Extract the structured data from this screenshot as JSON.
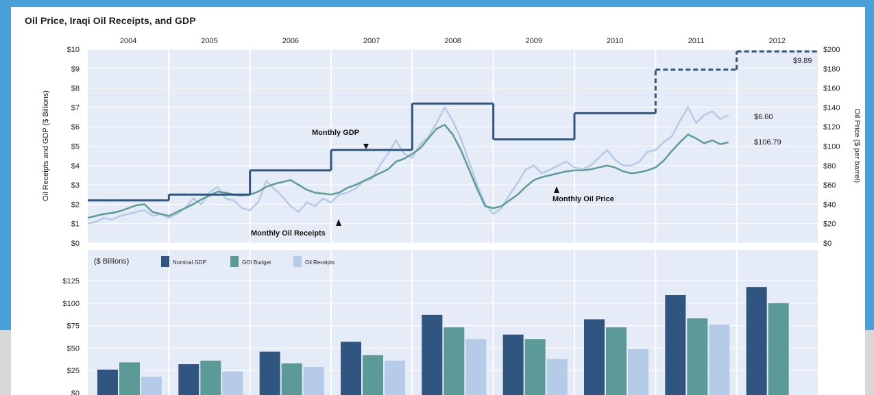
{
  "window_colors": {
    "frame": "#4aa0d8",
    "strip": "#d7d7d7",
    "panel": "#e6ecf7",
    "gdp": "#2f5580",
    "budget": "#5c9a98",
    "receipts": "#b6cbe7",
    "oil_price": "#5f9e98"
  },
  "chart_data": [
    {
      "type": "line",
      "title": "Oil Price, Iraqi Oil Receipts, and GDP",
      "years": [
        "2004",
        "2005",
        "2006",
        "2007",
        "2008",
        "2009",
        "2010",
        "2011",
        "2012"
      ],
      "ylabel_left": "Oil Receipts and GDP ($ Billions)",
      "ylabel_right": "Oil Price ($ per barrel)",
      "y_left_ticks": [
        "$0",
        "$1",
        "$2",
        "$3",
        "$4",
        "$5",
        "$6",
        "$7",
        "$8",
        "$9",
        "$10"
      ],
      "y_right_ticks": [
        "$0",
        "$20",
        "$40",
        "$60",
        "$80",
        "$100",
        "$120",
        "$140",
        "$160",
        "$180",
        "$200"
      ],
      "ylim_left": [
        0,
        10
      ],
      "ylim_right": [
        0,
        200
      ],
      "gdp_steps": [
        {
          "from": 2004.0,
          "to": 2005.0,
          "value": 2.2
        },
        {
          "from": 2005.0,
          "to": 2006.0,
          "value": 2.5
        },
        {
          "from": 2006.0,
          "to": 2007.0,
          "value": 3.75
        },
        {
          "from": 2007.0,
          "to": 2008.0,
          "value": 4.8
        },
        {
          "from": 2008.0,
          "to": 2009.0,
          "value": 7.2
        },
        {
          "from": 2009.0,
          "to": 2010.0,
          "value": 5.35
        },
        {
          "from": 2010.0,
          "to": 2011.0,
          "value": 6.7
        },
        {
          "from": 2011.0,
          "to": 2012.0,
          "value": 8.95,
          "projected": true
        },
        {
          "from": 2012.0,
          "to": 2013.0,
          "value": 9.89,
          "projected": true
        }
      ],
      "series": [
        {
          "name": "Monthly Oil Receipts",
          "axis": "left",
          "x": [
            2004.0,
            2004.1,
            2004.2,
            2004.3,
            2004.4,
            2004.5,
            2004.6,
            2004.7,
            2004.8,
            2004.9,
            2005.0,
            2005.1,
            2005.2,
            2005.3,
            2005.4,
            2005.5,
            2005.6,
            2005.7,
            2005.8,
            2005.9,
            2006.0,
            2006.1,
            2006.2,
            2006.3,
            2006.4,
            2006.5,
            2006.6,
            2006.7,
            2006.8,
            2006.9,
            2007.0,
            2007.1,
            2007.2,
            2007.3,
            2007.4,
            2007.5,
            2007.6,
            2007.7,
            2007.8,
            2007.9,
            2008.0,
            2008.1,
            2008.2,
            2008.3,
            2008.4,
            2008.5,
            2008.6,
            2008.7,
            2008.8,
            2008.9,
            2009.0,
            2009.1,
            2009.2,
            2009.3,
            2009.4,
            2009.5,
            2009.6,
            2009.7,
            2009.8,
            2009.9,
            2010.0,
            2010.1,
            2010.2,
            2010.3,
            2010.4,
            2010.5,
            2010.6,
            2010.7,
            2010.8,
            2010.9,
            2011.0,
            2011.1,
            2011.2,
            2011.3,
            2011.4,
            2011.5,
            2011.6,
            2011.7,
            2011.8,
            2011.9
          ],
          "values": [
            1.0,
            1.1,
            1.3,
            1.2,
            1.4,
            1.5,
            1.6,
            1.7,
            1.4,
            1.5,
            1.3,
            1.5,
            1.8,
            2.3,
            2.0,
            2.6,
            2.9,
            2.3,
            2.2,
            1.8,
            1.7,
            2.1,
            3.2,
            2.8,
            2.4,
            1.9,
            1.6,
            2.1,
            1.9,
            2.3,
            2.1,
            2.5,
            2.6,
            2.8,
            3.2,
            3.3,
            4.0,
            4.6,
            5.3,
            4.6,
            4.4,
            5.1,
            5.5,
            6.2,
            7.0,
            6.3,
            5.4,
            4.2,
            3.0,
            2.0,
            1.5,
            1.8,
            2.5,
            3.1,
            3.8,
            4.0,
            3.6,
            3.8,
            4.0,
            4.2,
            3.9,
            3.8,
            4.0,
            4.4,
            4.8,
            4.3,
            4.0,
            4.0,
            4.2,
            4.7,
            4.8,
            5.2,
            5.5,
            6.3,
            7.0,
            6.2,
            6.6,
            6.8,
            6.4,
            6.6
          ]
        },
        {
          "name": "Monthly Oil Price",
          "axis": "right",
          "x": [
            2004.0,
            2004.1,
            2004.2,
            2004.3,
            2004.4,
            2004.5,
            2004.6,
            2004.7,
            2004.8,
            2004.9,
            2005.0,
            2005.1,
            2005.2,
            2005.3,
            2005.4,
            2005.5,
            2005.6,
            2005.7,
            2005.8,
            2005.9,
            2006.0,
            2006.1,
            2006.2,
            2006.3,
            2006.4,
            2006.5,
            2006.6,
            2006.7,
            2006.8,
            2006.9,
            2007.0,
            2007.1,
            2007.2,
            2007.3,
            2007.4,
            2007.5,
            2007.6,
            2007.7,
            2007.8,
            2007.9,
            2008.0,
            2008.1,
            2008.2,
            2008.3,
            2008.4,
            2008.5,
            2008.6,
            2008.7,
            2008.8,
            2008.9,
            2009.0,
            2009.1,
            2009.2,
            2009.3,
            2009.4,
            2009.5,
            2009.6,
            2009.7,
            2009.8,
            2009.9,
            2010.0,
            2010.1,
            2010.2,
            2010.3,
            2010.4,
            2010.5,
            2010.6,
            2010.7,
            2010.8,
            2010.9,
            2011.0,
            2011.1,
            2011.2,
            2011.3,
            2011.4,
            2011.5,
            2011.6,
            2011.7,
            2011.8,
            2011.9
          ],
          "values": [
            26,
            28,
            30,
            31,
            33,
            36,
            39,
            40,
            32,
            30,
            28,
            32,
            36,
            40,
            45,
            49,
            53,
            52,
            50,
            49,
            50,
            53,
            58,
            61,
            63,
            65,
            60,
            55,
            52,
            51,
            50,
            52,
            57,
            60,
            64,
            68,
            72,
            76,
            84,
            87,
            92,
            98,
            108,
            118,
            122,
            112,
            96,
            76,
            56,
            38,
            36,
            38,
            44,
            50,
            58,
            65,
            68,
            70,
            72,
            74,
            75,
            75,
            76,
            78,
            80,
            78,
            74,
            72,
            73,
            75,
            78,
            85,
            95,
            104,
            112,
            108,
            103,
            106,
            102,
            104
          ]
        }
      ],
      "labels": {
        "monthly_gdp": "Monthly GDP",
        "monthly_oil_receipts": "Monthly Oil Receipts",
        "monthly_oil_price": "Monthly Oil Price",
        "end_receipts": "$6.60",
        "end_price": "$106.79",
        "end_gdp": "$9.89"
      }
    },
    {
      "type": "bar",
      "unit_label": "($ Billions)",
      "categories": [
        "2004",
        "2005",
        "2006",
        "2007",
        "2008",
        "2009",
        "2010",
        "2011",
        "2012"
      ],
      "y_ticks": [
        "$0",
        "$25",
        "$50",
        "$75",
        "$100",
        "$125"
      ],
      "ylim": [
        0,
        125
      ],
      "series": [
        {
          "name": "Nominal GDP",
          "values": [
            26,
            32,
            46,
            57,
            87,
            65,
            82,
            109,
            118
          ]
        },
        {
          "name": "GOI Budget",
          "values": [
            34,
            36,
            33,
            42,
            73,
            60,
            73,
            83,
            100
          ]
        },
        {
          "name": "Oil Receipts",
          "values": [
            18,
            24,
            29,
            36,
            60,
            38,
            49,
            76,
            null
          ]
        }
      ]
    }
  ]
}
